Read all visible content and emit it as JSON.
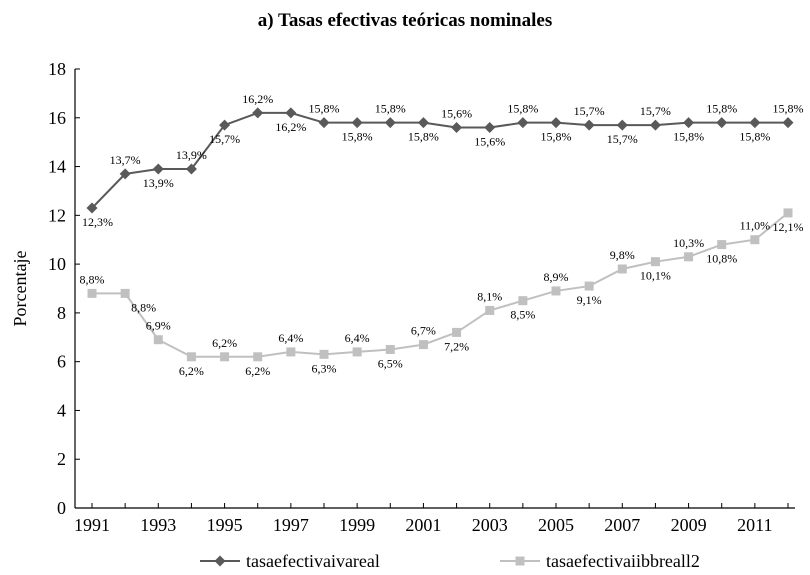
{
  "chart_data": {
    "type": "line",
    "title": "a) Tasas efectivas teóricas nominales",
    "xlabel": "",
    "ylabel": "Porcentaje",
    "x": [
      1991,
      1992,
      1993,
      1994,
      1995,
      1996,
      1997,
      1998,
      1999,
      2000,
      2001,
      2002,
      2003,
      2004,
      2005,
      2006,
      2007,
      2008,
      2009,
      2010,
      2011,
      2012
    ],
    "xticks": [
      "1991",
      "1993",
      "1995",
      "1997",
      "1999",
      "2001",
      "2003",
      "2005",
      "2007",
      "2009",
      "2011"
    ],
    "yticks": [
      "0",
      "2",
      "4",
      "6",
      "8",
      "10",
      "12",
      "14",
      "16",
      "18"
    ],
    "ylim": [
      0,
      18
    ],
    "grid": false,
    "legend_position": "bottom",
    "series": [
      {
        "name": "tasaefectivaivareal",
        "color": "#595959",
        "marker": "diamond",
        "values": [
          12.3,
          13.7,
          13.9,
          13.9,
          15.7,
          16.2,
          16.2,
          15.8,
          15.8,
          15.8,
          15.8,
          15.6,
          15.6,
          15.8,
          15.8,
          15.7,
          15.7,
          15.7,
          15.8,
          15.8,
          15.8,
          15.8
        ],
        "labels": [
          "12,3%",
          "13,7%",
          "13,9%",
          "13,9%",
          "15,7%",
          "16,2%",
          "16,2%",
          "15,8%",
          "15,8%",
          "15,8%",
          "15,8%",
          "15,6%",
          "15,6%",
          "15,8%",
          "15,8%",
          "15,7%",
          "15,7%",
          "15,7%",
          "15,8%",
          "15,8%",
          "15,8%",
          "15,8%"
        ]
      },
      {
        "name": "tasaefectivaiibbreall2",
        "color": "#c0c0c0",
        "marker": "square",
        "values": [
          8.8,
          8.8,
          6.9,
          6.2,
          6.2,
          6.2,
          6.4,
          6.3,
          6.4,
          6.5,
          6.7,
          7.2,
          8.1,
          8.5,
          8.9,
          9.1,
          9.8,
          10.1,
          10.3,
          10.8,
          11.0,
          12.1
        ],
        "labels": [
          "8,8%",
          "8,8%",
          "6,9%",
          "6,2%",
          "6,2%",
          "6,2%",
          "6,4%",
          "6,3%",
          "6,4%",
          "6,5%",
          "6,7%",
          "7,2%",
          "8,1%",
          "8,5%",
          "8,9%",
          "9,1%",
          "9,8%",
          "10,1%",
          "10,3%",
          "10,8%",
          "11,0%",
          "12,1%"
        ]
      }
    ]
  }
}
